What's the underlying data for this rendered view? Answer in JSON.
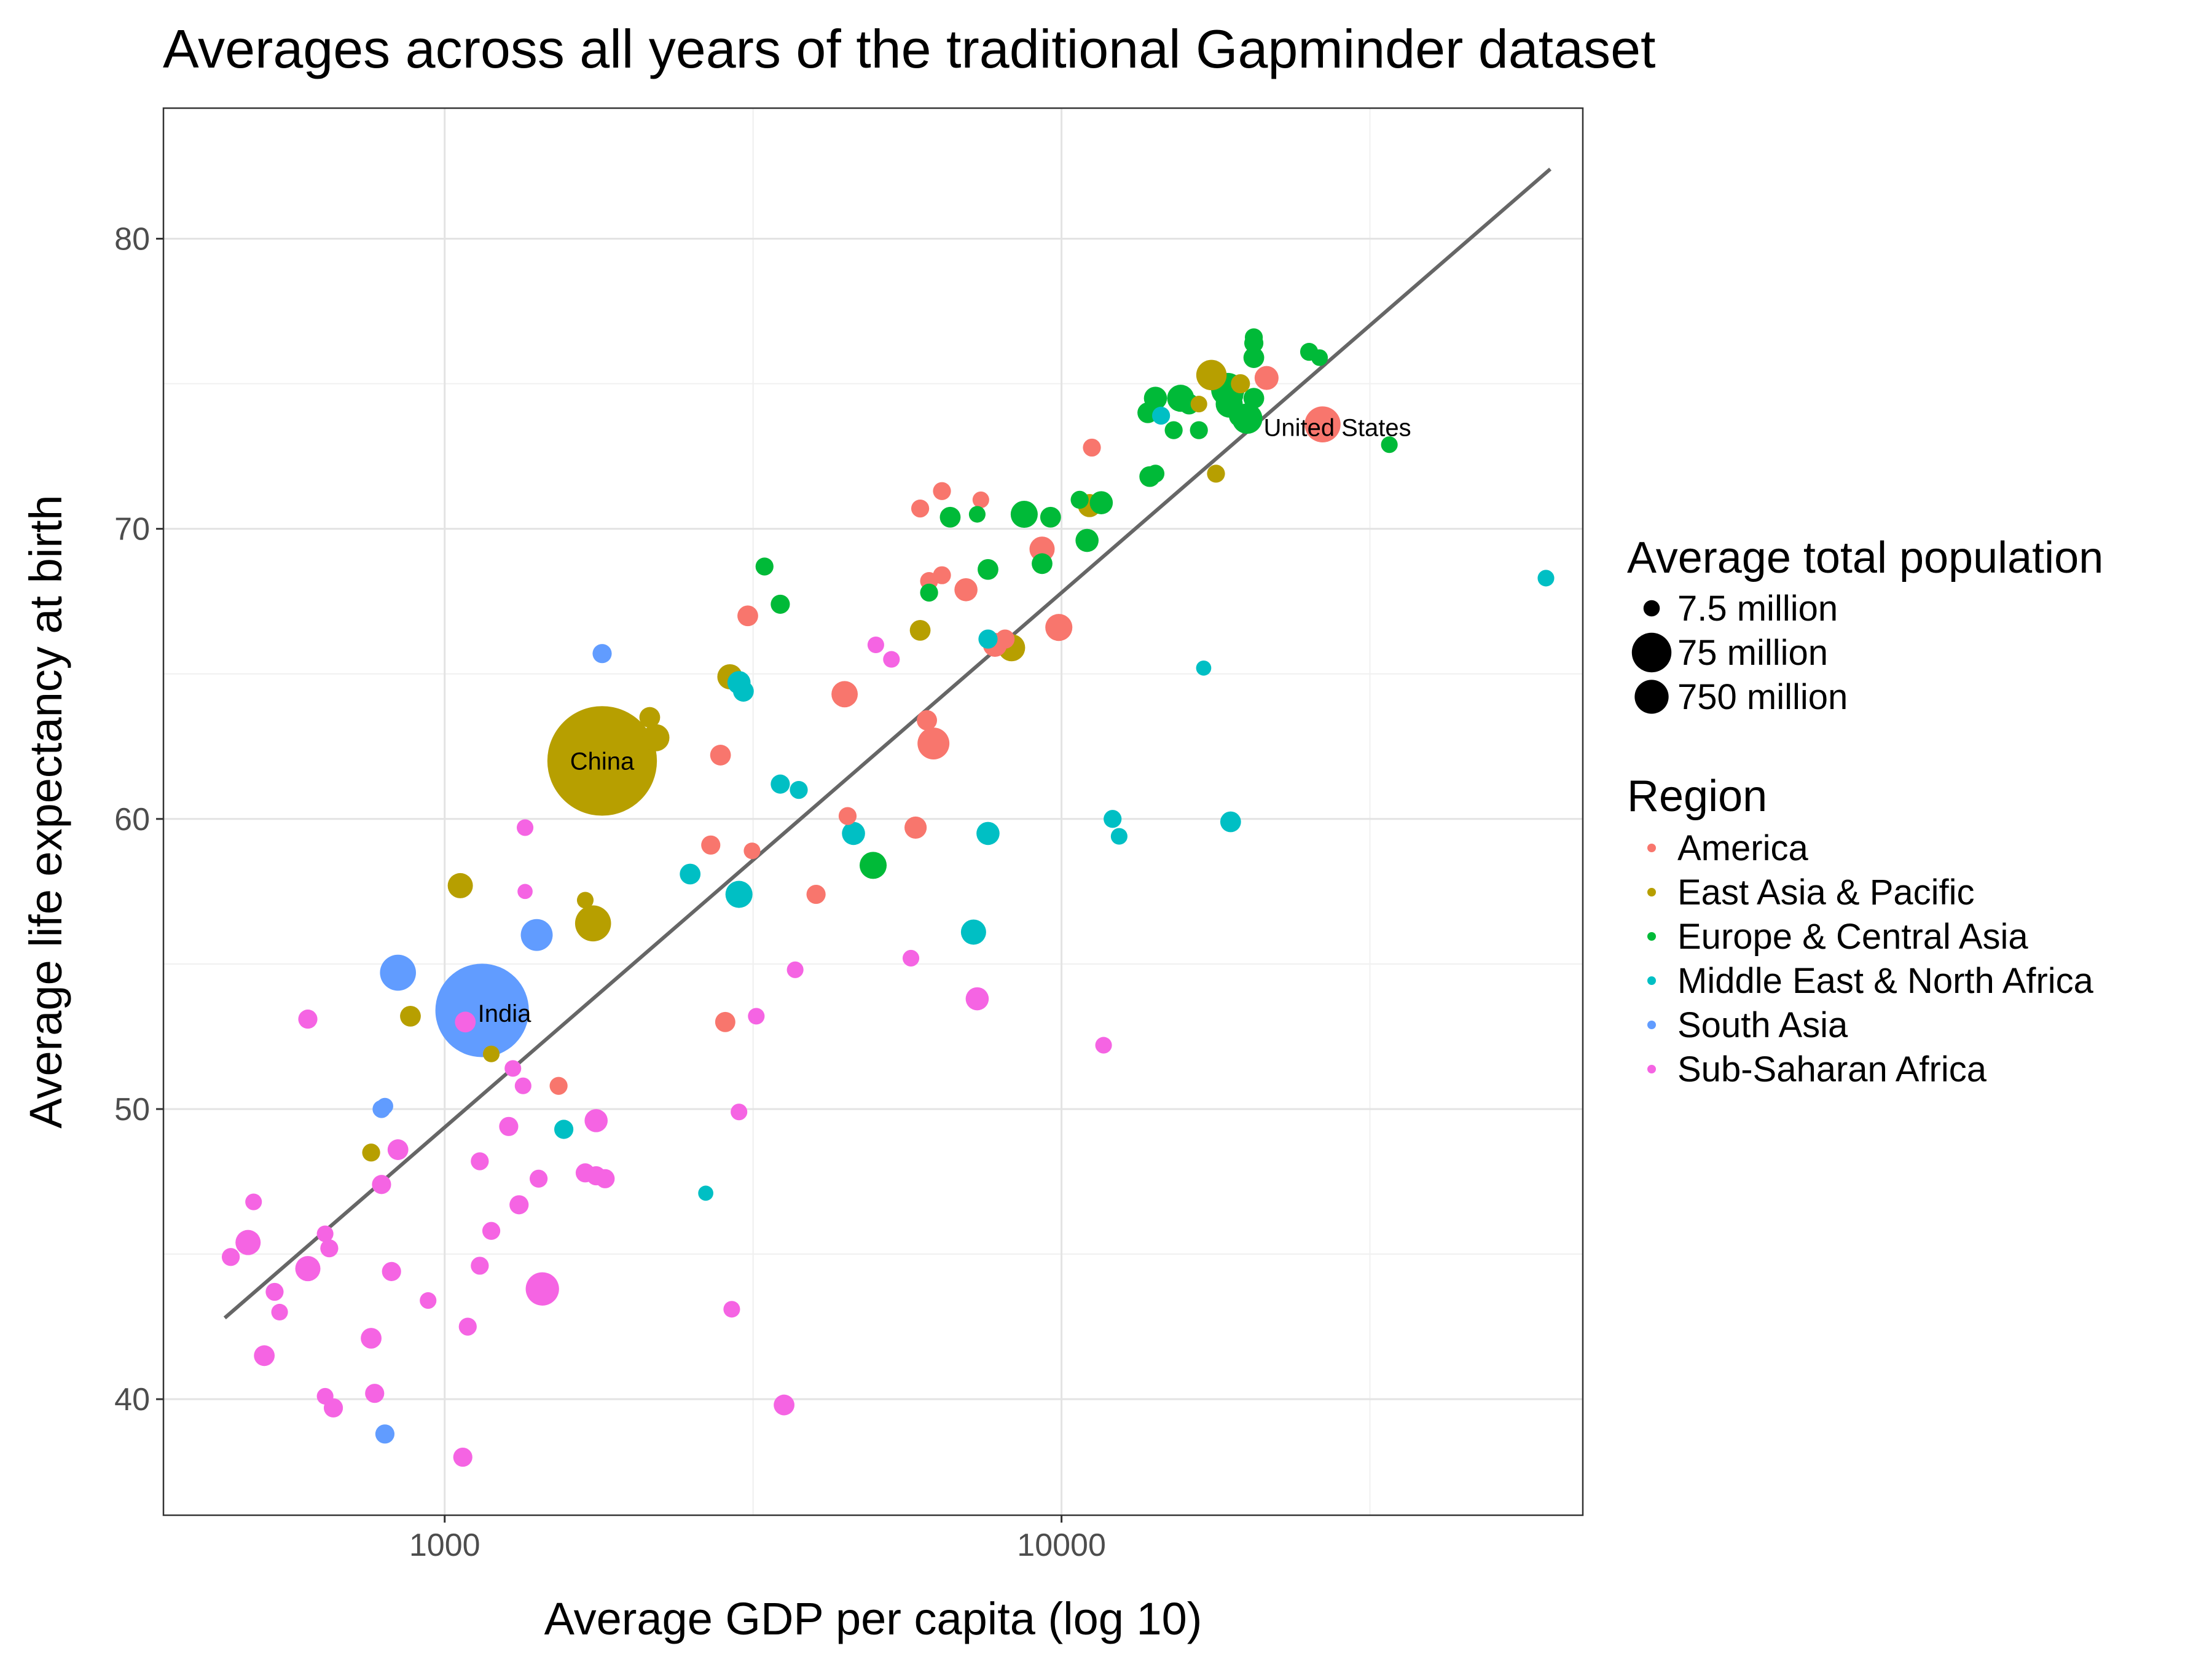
{
  "chart_data": {
    "type": "scatter",
    "title": "Averages across all years of the traditional Gapminder dataset",
    "xlabel": "Average GDP per capita (log 10)",
    "ylabel": "Average life expectancy at birth",
    "x_scale": "log10",
    "xlim": [
      350,
      70000
    ],
    "ylim": [
      36.0,
      84.5
    ],
    "x_ticks": [
      1000,
      10000
    ],
    "x_tick_labels": [
      "1000",
      "10000"
    ],
    "y_ticks": [
      40,
      50,
      60,
      70,
      80
    ],
    "y_tick_labels": [
      "40",
      "50",
      "60",
      "70",
      "80"
    ],
    "grid": true,
    "legend_position": "right",
    "trend_line": {
      "x": [
        440,
        62000
      ],
      "y": [
        42.8,
        82.4
      ]
    },
    "size_legend": {
      "title": "Average total population",
      "entries": [
        {
          "label": "7.5 million",
          "value": 7.5
        },
        {
          "label": "75 million",
          "value": 75
        },
        {
          "label": "750 million",
          "value": 750
        }
      ]
    },
    "color_legend": {
      "title": "Region",
      "entries": [
        {
          "label": "America",
          "color": "#F8766D"
        },
        {
          "label": "East Asia & Pacific",
          "color": "#B79F00"
        },
        {
          "label": "Europe & Central Asia",
          "color": "#00BA38"
        },
        {
          "label": "Middle East & North Africa",
          "color": "#00BFC4"
        },
        {
          "label": "South Asia",
          "color": "#619CFF"
        },
        {
          "label": "Sub-Saharan Africa",
          "color": "#F564E3"
        }
      ]
    },
    "annotations": [
      {
        "label": "China",
        "x": 1800,
        "y": 62.0
      },
      {
        "label": "India",
        "x": 1250,
        "y": 53.3
      },
      {
        "label": "United States",
        "x": 28000,
        "y": 73.5
      }
    ],
    "series": [
      {
        "name": "America",
        "color": "#F8766D",
        "points": [
          [
            5900,
            70.7
          ],
          [
            6400,
            71.3
          ],
          [
            7400,
            71.0
          ],
          [
            11200,
            72.8
          ],
          [
            21500,
            75.2
          ],
          [
            26500,
            73.6
          ],
          [
            6100,
            68.2
          ],
          [
            6400,
            68.4
          ],
          [
            7000,
            67.9
          ],
          [
            9300,
            69.3
          ],
          [
            9900,
            66.6
          ],
          [
            8100,
            66.2
          ],
          [
            7800,
            66.0
          ],
          [
            4450,
            64.3
          ],
          [
            6050,
            63.4
          ],
          [
            6200,
            62.6
          ],
          [
            3100,
            67.0
          ],
          [
            2800,
            62.2
          ],
          [
            2700,
            59.1
          ],
          [
            3150,
            58.9
          ],
          [
            4500,
            60.1
          ],
          [
            5800,
            59.7
          ],
          [
            4000,
            57.4
          ],
          [
            2850,
            53.0
          ],
          [
            1530,
            50.8
          ]
        ],
        "sizes": [
          10,
          10,
          8,
          10,
          22,
          60,
          10,
          10,
          20,
          25,
          30,
          12,
          22,
          28,
          14,
          45,
          15,
          15,
          12,
          8,
          10,
          18,
          12,
          14,
          10
        ]
      },
      {
        "name": "East Asia & Pacific",
        "color": "#B79F00",
        "points": [
          [
            17500,
            75.3
          ],
          [
            11100,
            70.8
          ],
          [
            16700,
            74.3
          ],
          [
            19500,
            75.0
          ],
          [
            17800,
            71.9
          ],
          [
            8300,
            65.9
          ],
          [
            5900,
            66.5
          ],
          [
            2900,
            64.9
          ],
          [
            2150,
            63.5
          ],
          [
            2200,
            62.8
          ],
          [
            1800,
            62.0
          ],
          [
            1060,
            57.7
          ],
          [
            1690,
            57.2
          ],
          [
            1740,
            56.4
          ],
          [
            880,
            53.2
          ],
          [
            1190,
            51.9
          ],
          [
            760,
            48.5
          ]
        ],
        "sizes": [
          40,
          20,
          8,
          12,
          10,
          30,
          15,
          25,
          15,
          30,
          700,
          25,
          8,
          60,
          15,
          8,
          10
        ]
      },
      {
        "name": "Europe & Central Asia",
        "color": "#00BA38",
        "points": [
          [
            20500,
            76.6
          ],
          [
            20500,
            76.4
          ],
          [
            25200,
            76.1
          ],
          [
            26200,
            75.9
          ],
          [
            20500,
            75.9
          ],
          [
            15600,
            74.5
          ],
          [
            18600,
            74.8
          ],
          [
            18800,
            74.6
          ],
          [
            20500,
            74.5
          ],
          [
            14200,
            74.5
          ],
          [
            18700,
            74.3
          ],
          [
            16100,
            74.3
          ],
          [
            13800,
            74.0
          ],
          [
            19500,
            73.9
          ],
          [
            20000,
            73.8
          ],
          [
            15200,
            73.4
          ],
          [
            16700,
            73.4
          ],
          [
            34000,
            72.9
          ],
          [
            13900,
            71.8
          ],
          [
            14200,
            71.9
          ],
          [
            10700,
            71.0
          ],
          [
            11600,
            70.9
          ],
          [
            8700,
            70.5
          ],
          [
            9600,
            70.4
          ],
          [
            6600,
            70.4
          ],
          [
            7300,
            70.5
          ],
          [
            11000,
            69.6
          ],
          [
            9300,
            68.8
          ],
          [
            7600,
            68.6
          ],
          [
            3300,
            68.7
          ],
          [
            3500,
            67.4
          ],
          [
            6100,
            67.8
          ],
          [
            4950,
            58.4
          ]
        ],
        "sizes": [
          10,
          12,
          10,
          8,
          15,
          30,
          50,
          25,
          15,
          20,
          30,
          15,
          15,
          20,
          40,
          10,
          10,
          8,
          15,
          10,
          10,
          20,
          30,
          15,
          15,
          8,
          20,
          15,
          15,
          10,
          12,
          10,
          30
        ]
      },
      {
        "name": "Middle East & North Africa",
        "color": "#00BFC4",
        "points": [
          [
            61000,
            68.3
          ],
          [
            17000,
            65.2
          ],
          [
            14500,
            73.9
          ],
          [
            7600,
            66.2
          ],
          [
            3000,
            64.7
          ],
          [
            3050,
            64.4
          ],
          [
            3500,
            61.2
          ],
          [
            3750,
            61.0
          ],
          [
            12100,
            60.0
          ],
          [
            18800,
            59.9
          ],
          [
            12400,
            59.4
          ],
          [
            4600,
            59.5
          ],
          [
            7600,
            59.5
          ],
          [
            2500,
            58.1
          ],
          [
            3000,
            57.4
          ],
          [
            7200,
            56.1
          ],
          [
            1560,
            49.3
          ],
          [
            2650,
            47.1
          ]
        ],
        "sizes": [
          8,
          6,
          10,
          12,
          20,
          15,
          12,
          10,
          10,
          15,
          8,
          20,
          20,
          15,
          30,
          25,
          12,
          6
        ]
      },
      {
        "name": "South Asia",
        "color": "#619CFF",
        "points": [
          [
            1800,
            65.7
          ],
          [
            1410,
            56.0
          ],
          [
            840,
            54.7
          ],
          [
            1150,
            53.4
          ],
          [
            790,
            50.0
          ],
          [
            800,
            50.1
          ],
          [
            800,
            38.8
          ]
        ],
        "sizes": [
          12,
          45,
          60,
          500,
          10,
          8,
          12
        ]
      },
      {
        "name": "Sub-Saharan Africa",
        "color": "#F564E3",
        "points": [
          [
            1350,
            59.7
          ],
          [
            1350,
            57.5
          ],
          [
            5000,
            66.0
          ],
          [
            5300,
            65.5
          ],
          [
            3700,
            54.8
          ],
          [
            5700,
            55.2
          ],
          [
            7300,
            53.8
          ],
          [
            3200,
            53.2
          ],
          [
            600,
            53.1
          ],
          [
            1080,
            53.0
          ],
          [
            1290,
            51.4
          ],
          [
            1340,
            50.8
          ],
          [
            11700,
            52.2
          ],
          [
            3000,
            49.9
          ],
          [
            1270,
            49.4
          ],
          [
            1760,
            49.6
          ],
          [
            840,
            48.6
          ],
          [
            1140,
            48.2
          ],
          [
            790,
            47.4
          ],
          [
            1420,
            47.6
          ],
          [
            1690,
            47.8
          ],
          [
            1760,
            47.7
          ],
          [
            1820,
            47.6
          ],
          [
            490,
            46.8
          ],
          [
            1320,
            46.7
          ],
          [
            1190,
            45.8
          ],
          [
            640,
            45.7
          ],
          [
            650,
            45.2
          ],
          [
            450,
            44.9
          ],
          [
            480,
            45.4
          ],
          [
            1140,
            44.6
          ],
          [
            600,
            44.5
          ],
          [
            820,
            44.4
          ],
          [
            530,
            43.7
          ],
          [
            940,
            43.4
          ],
          [
            1440,
            43.8
          ],
          [
            540,
            43.0
          ],
          [
            1090,
            42.5
          ],
          [
            2920,
            43.1
          ],
          [
            760,
            42.1
          ],
          [
            510,
            41.5
          ],
          [
            640,
            40.1
          ],
          [
            770,
            40.2
          ],
          [
            660,
            39.7
          ],
          [
            3550,
            39.8
          ],
          [
            1070,
            38.0
          ]
        ],
        "sizes": [
          8,
          6,
          8,
          8,
          8,
          8,
          20,
          8,
          12,
          15,
          8,
          8,
          8,
          8,
          12,
          20,
          15,
          10,
          12,
          10,
          12,
          12,
          12,
          8,
          12,
          10,
          8,
          10,
          10,
          25,
          10,
          25,
          12,
          10,
          8,
          50,
          8,
          10,
          8,
          15,
          15,
          8,
          12,
          12,
          15,
          12
        ]
      }
    ]
  }
}
